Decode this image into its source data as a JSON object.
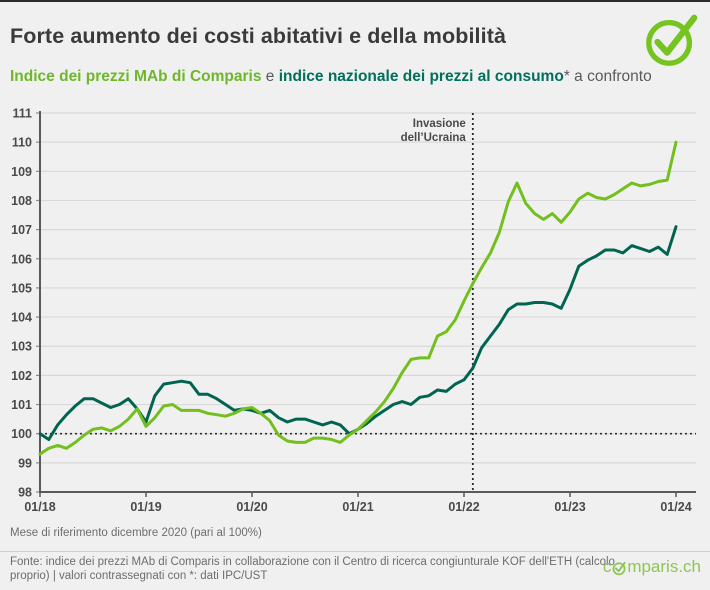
{
  "header": {
    "title": "Forte aumento dei costi abitativi e della mobilità",
    "subtitle_mab": "Indice dei prezzi MAb di Comparis",
    "subtitle_connector": " e ",
    "subtitle_cpi": "indice nazionale dei prezzi al consumo",
    "subtitle_tail": "* a confronto"
  },
  "footer": {
    "note": "Mese di riferimento dicembre 2020 (pari al 100%)",
    "source": "Fonte: indice dei prezzi MAb di Comparis in collaborazione con il Centro di ricerca congiunturale KOF dell'ETH (calcolo proprio) | valori contrassegnati con *: dati IPC/UST",
    "logo_pre": "c",
    "logo_post": "mparis.ch"
  },
  "colors": {
    "mab_green": "#72bf1d",
    "cpi_teal": "#006450",
    "subtitle_green": "#6eb72a",
    "subtitle_teal": "#00705c",
    "logo_green": "#8fc653",
    "check_green": "#75c41f",
    "axis": "#5a5a5a",
    "grid": "#d9d9d9",
    "tick_label": "#4a4a4a",
    "annotation": "#4a4a4a"
  },
  "chart_data": {
    "type": "line",
    "x_unit": "month",
    "x_tick_labels": [
      "01/18",
      "01/19",
      "01/20",
      "01/21",
      "01/22",
      "01/23",
      "01/24"
    ],
    "x_tick_indices": [
      0,
      12,
      24,
      36,
      48,
      60,
      72
    ],
    "ylim": [
      98,
      111
    ],
    "yticks": [
      98,
      99,
      100,
      101,
      102,
      103,
      104,
      105,
      106,
      107,
      108,
      109,
      110,
      111
    ],
    "baseline_value": 100,
    "grid": true,
    "annotation": {
      "line1": "Invasione",
      "line2": "dell’Ucraina",
      "x_index": 49
    },
    "series": [
      {
        "name": "Indice dei prezzi MAb di Comparis",
        "color": "#72bf1d",
        "values": [
          99.3,
          99.5,
          99.6,
          99.5,
          99.7,
          99.95,
          100.15,
          100.2,
          100.1,
          100.25,
          100.5,
          100.85,
          100.25,
          100.55,
          100.95,
          101.0,
          100.8,
          100.8,
          100.8,
          100.7,
          100.65,
          100.6,
          100.7,
          100.85,
          100.9,
          100.7,
          100.45,
          99.95,
          99.75,
          99.7,
          99.7,
          99.85,
          99.85,
          99.8,
          99.7,
          99.95,
          100.15,
          100.45,
          100.75,
          101.1,
          101.55,
          102.1,
          102.55,
          102.6,
          102.6,
          103.35,
          103.5,
          103.9,
          104.55,
          105.15,
          105.7,
          106.2,
          106.9,
          107.95,
          108.6,
          107.9,
          107.55,
          107.35,
          107.55,
          107.25,
          107.6,
          108.05,
          108.25,
          108.1,
          108.05,
          108.2,
          108.4,
          108.6,
          108.5,
          108.55,
          108.65,
          108.7,
          110.0
        ]
      },
      {
        "name": "Indice nazionale dei prezzi al consumo",
        "color": "#006450",
        "values": [
          100.0,
          99.8,
          100.3,
          100.65,
          100.95,
          101.2,
          101.2,
          101.05,
          100.9,
          101.0,
          101.2,
          100.85,
          100.4,
          101.3,
          101.7,
          101.75,
          101.8,
          101.75,
          101.35,
          101.35,
          101.2,
          101.0,
          100.8,
          100.85,
          100.8,
          100.7,
          100.8,
          100.55,
          100.4,
          100.5,
          100.5,
          100.4,
          100.3,
          100.4,
          100.3,
          100.0,
          100.15,
          100.35,
          100.6,
          100.8,
          101.0,
          101.1,
          101.0,
          101.25,
          101.3,
          101.5,
          101.45,
          101.7,
          101.85,
          102.25,
          102.95,
          103.35,
          103.75,
          104.25,
          104.45,
          104.45,
          104.5,
          104.5,
          104.45,
          104.3,
          104.95,
          105.75,
          105.95,
          106.1,
          106.3,
          106.3,
          106.2,
          106.45,
          106.35,
          106.25,
          106.4,
          106.15,
          107.1
        ]
      }
    ]
  }
}
